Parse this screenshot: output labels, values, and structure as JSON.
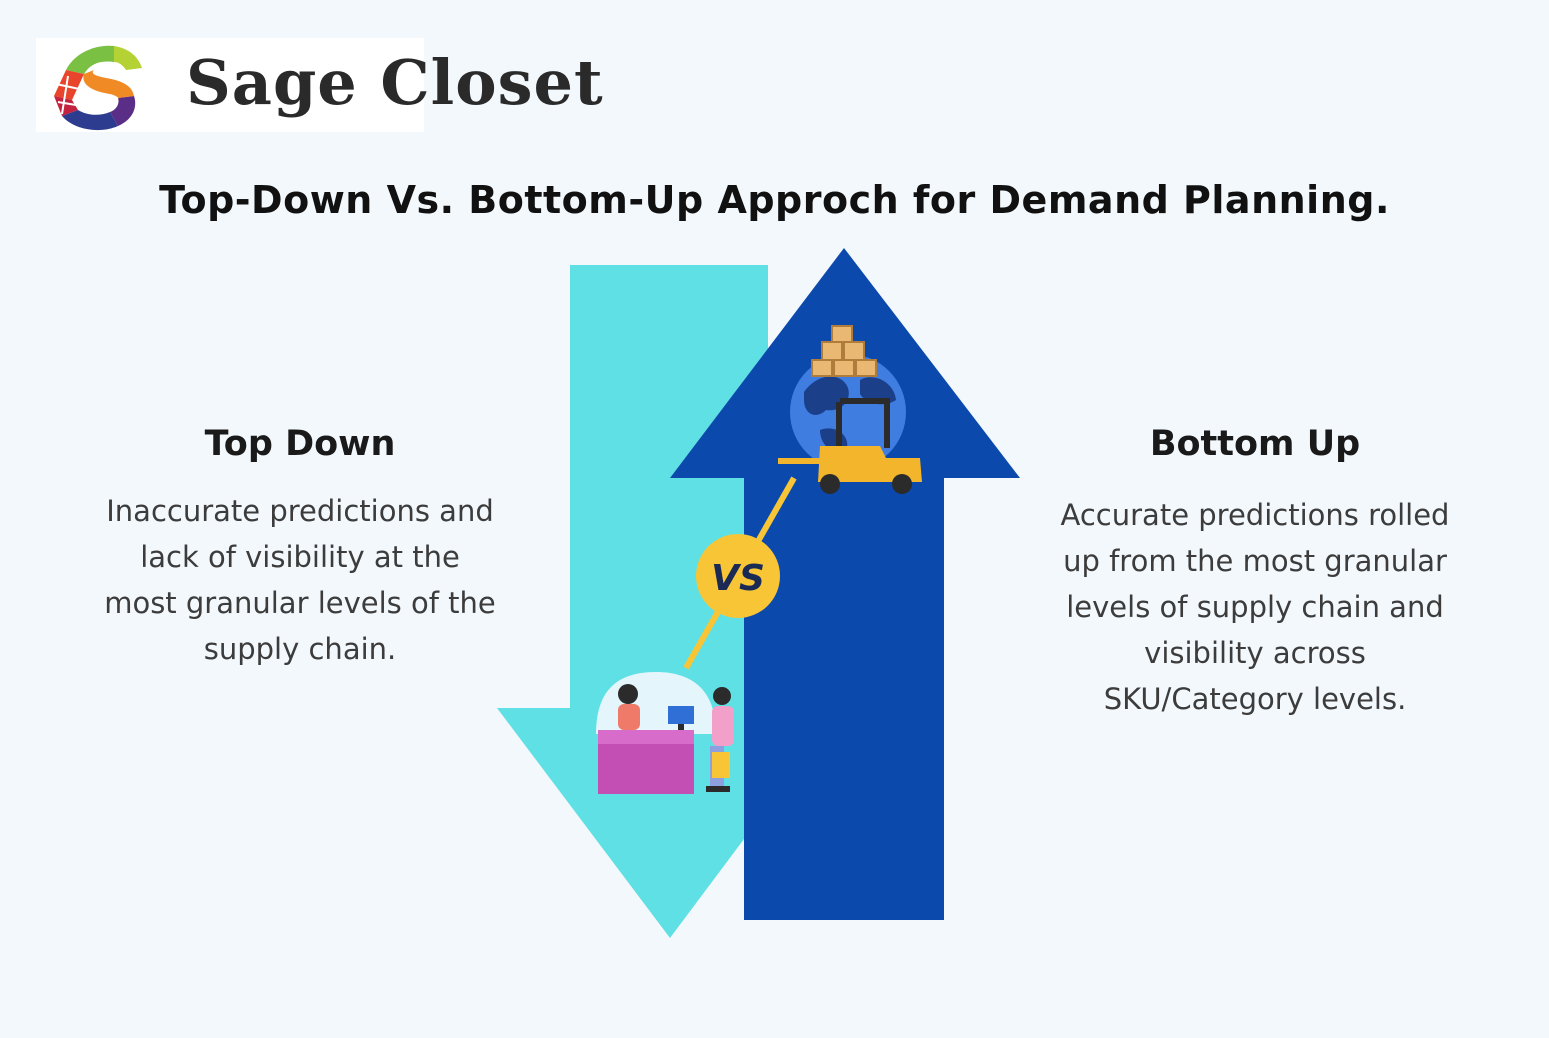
{
  "logo": {
    "brand_letter": "S",
    "brand_rest": "age Closet"
  },
  "title": "Top-Down Vs. Bottom-Up Approch for Demand Planning.",
  "vs_label": "VS",
  "top_down": {
    "heading": "Top Down",
    "description": "Inaccurate predictions and lack of visibility at the most granular levels of the supply chain."
  },
  "bottom_up": {
    "heading": "Bottom Up",
    "description": "Accurate predictions rolled up from the most granular levels of supply chain and visibility across SKU/Category levels."
  },
  "icons": {
    "top_illustration": "globe-forklift-icon",
    "bottom_illustration": "shop-counter-icon"
  },
  "colors": {
    "down_arrow": "#5fe0e5",
    "up_arrow": "#0b49ad",
    "vs_badge": "#f7c536",
    "background": "#f3f8fc"
  }
}
